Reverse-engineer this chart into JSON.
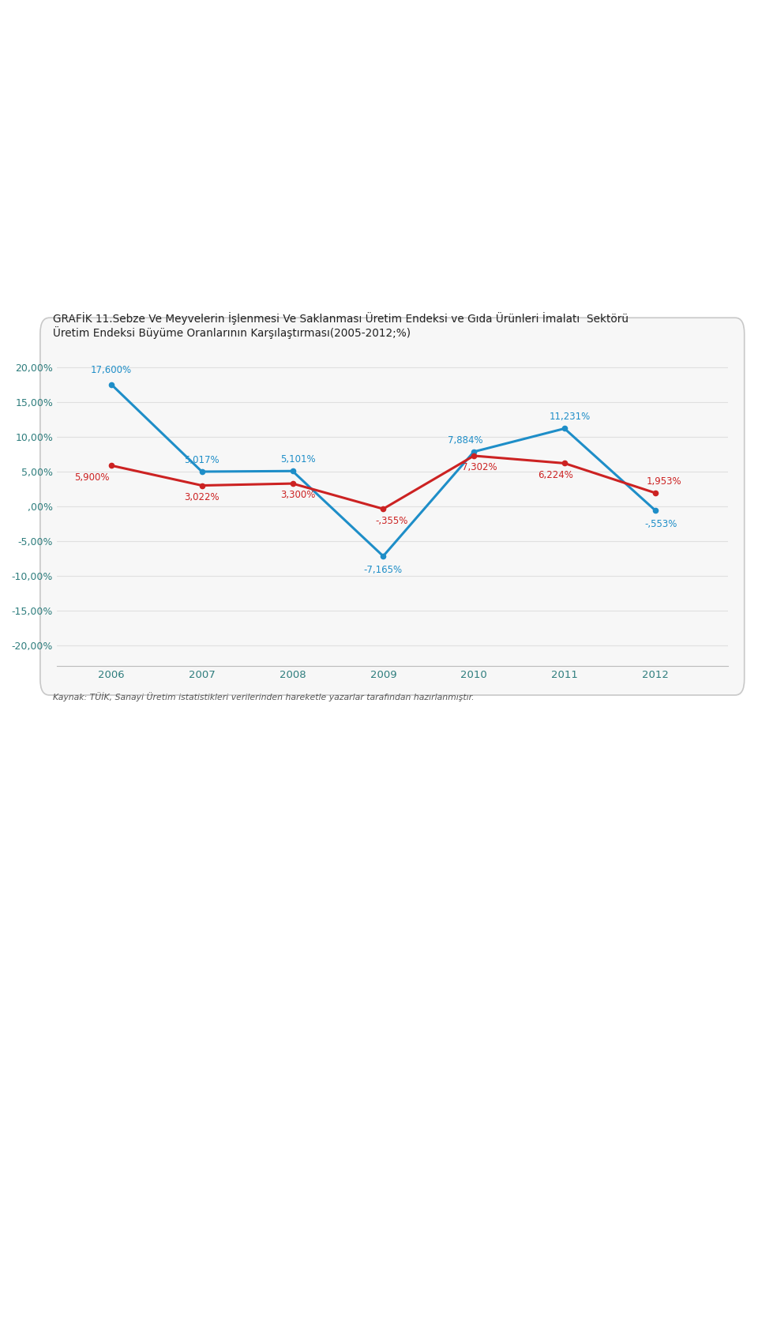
{
  "title_line1": "GRAFİK 11.Sebze Ve Meyvelerin İşlenmesi Ve Saklanması Üretim Endeksi ve Gıda Ürünleri İmalatı  Sektörü",
  "title_line2": "Üretim Endeksi Büyüme Oranlarının Karşılaştırması(2005-2012;%)",
  "years": [
    2006,
    2007,
    2008,
    2009,
    2010,
    2011,
    2012
  ],
  "blue_series": [
    17.6,
    5.017,
    5.101,
    -7.165,
    7.884,
    11.231,
    -0.553
  ],
  "red_series": [
    5.9,
    3.022,
    3.3,
    -0.355,
    7.302,
    6.224,
    1.953
  ],
  "blue_labels": [
    "17,600%",
    "5,017%",
    "5,101%",
    "-7,165%",
    "7,884%",
    "11,231%",
    "-,553%"
  ],
  "red_labels": [
    "5,900%",
    "3,022%",
    "3,300%",
    "-,355%",
    "7,302%",
    "6,224%",
    "1,953%"
  ],
  "blue_color": "#1e8ec8",
  "red_color": "#cc2222",
  "yticks": [
    -20,
    -15,
    -10,
    -5,
    0,
    5,
    10,
    15,
    20
  ],
  "ytick_labels": [
    "-20,00%",
    "-15,00%",
    "-10,00%",
    "-5,00%",
    ",00%",
    "5,00%",
    "10,00%",
    "15,00%",
    "20,00%"
  ],
  "ylim": [
    -23,
    23
  ],
  "source_note": "Kaynak: TÜİK, Sanayi Üretim istatistikleri verilerinden hareketle yazarlar tarafından hazırlanmıştır.",
  "box_facecolor": "#f7f7f7",
  "box_edgecolor": "#c8c8c8",
  "grid_color": "#e0e0e0",
  "title_color": "#222222",
  "axis_label_color": "#2e7d7d"
}
